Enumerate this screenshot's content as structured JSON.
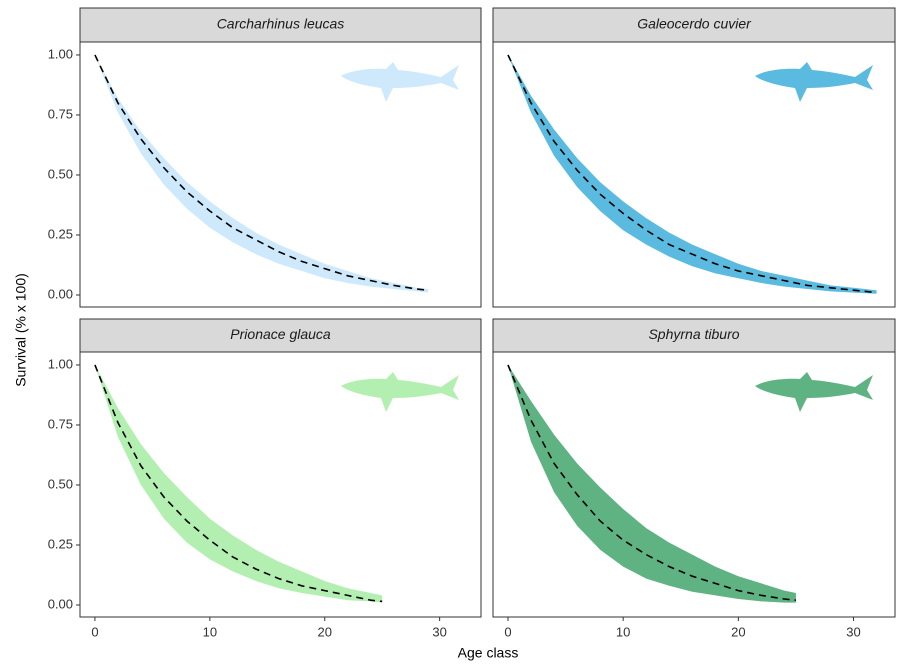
{
  "chart_data": {
    "type": "ribbon",
    "xlabel": "Age class",
    "ylabel": "Survival (% x 100)",
    "xlim": [
      -1.3,
      33.6
    ],
    "ylim": [
      -0.05,
      1.054
    ],
    "xticks": [
      0,
      10,
      20,
      30
    ],
    "yticks": [
      {
        "value": 0,
        "label": "0.00"
      },
      {
        "value": 0.25,
        "label": "0.25"
      },
      {
        "value": 0.5,
        "label": "0.50"
      },
      {
        "value": 0.75,
        "label": "0.75"
      },
      {
        "value": 1,
        "label": "1.00"
      }
    ],
    "facets": [
      {
        "title": "Carcharhinus leucas",
        "color": "#cde9fb",
        "x": [
          0,
          2,
          4,
          6,
          8,
          10,
          12,
          14,
          16,
          18,
          20,
          22,
          24,
          26,
          28,
          29
        ],
        "values": [
          1,
          0.8,
          0.65,
          0.53,
          0.43,
          0.35,
          0.28,
          0.23,
          0.18,
          0.14,
          0.11,
          0.08,
          0.06,
          0.04,
          0.025,
          0.02
        ],
        "lower": [
          1,
          0.76,
          0.59,
          0.46,
          0.36,
          0.28,
          0.22,
          0.17,
          0.13,
          0.1,
          0.07,
          0.05,
          0.035,
          0.025,
          0.015,
          0.01
        ],
        "upper": [
          1,
          0.82,
          0.68,
          0.57,
          0.47,
          0.39,
          0.32,
          0.26,
          0.21,
          0.17,
          0.13,
          0.1,
          0.07,
          0.05,
          0.03,
          0.025
        ]
      },
      {
        "title": "Galeocerdo cuvier",
        "color": "#5bbadf",
        "x": [
          0,
          2,
          4,
          6,
          8,
          10,
          12,
          14,
          16,
          18,
          20,
          22,
          24,
          26,
          28,
          30,
          32
        ],
        "values": [
          1,
          0.8,
          0.64,
          0.52,
          0.42,
          0.34,
          0.27,
          0.21,
          0.17,
          0.13,
          0.1,
          0.08,
          0.06,
          0.04,
          0.03,
          0.02,
          0.01
        ],
        "lower": [
          1,
          0.76,
          0.58,
          0.45,
          0.35,
          0.27,
          0.21,
          0.16,
          0.12,
          0.09,
          0.07,
          0.05,
          0.035,
          0.025,
          0.015,
          0.01,
          0.005
        ],
        "upper": [
          1,
          0.83,
          0.69,
          0.57,
          0.47,
          0.39,
          0.32,
          0.26,
          0.21,
          0.17,
          0.13,
          0.1,
          0.08,
          0.06,
          0.04,
          0.03,
          0.02
        ]
      },
      {
        "title": "Prionace glauca",
        "color": "#b3efb0",
        "x": [
          0,
          2,
          4,
          6,
          8,
          10,
          12,
          14,
          16,
          18,
          20,
          22,
          24,
          25
        ],
        "values": [
          1,
          0.76,
          0.58,
          0.45,
          0.35,
          0.27,
          0.2,
          0.15,
          0.11,
          0.08,
          0.06,
          0.04,
          0.02,
          0.015
        ],
        "lower": [
          1,
          0.7,
          0.5,
          0.36,
          0.26,
          0.19,
          0.14,
          0.1,
          0.07,
          0.05,
          0.035,
          0.02,
          0.015,
          0.01
        ],
        "upper": [
          1,
          0.82,
          0.67,
          0.55,
          0.45,
          0.36,
          0.29,
          0.23,
          0.18,
          0.14,
          0.1,
          0.07,
          0.05,
          0.04
        ]
      },
      {
        "title": "Sphyrna tiburo",
        "color": "#5fb383",
        "x": [
          0,
          2,
          4,
          6,
          8,
          10,
          12,
          14,
          16,
          18,
          20,
          22,
          24,
          25
        ],
        "values": [
          1,
          0.77,
          0.59,
          0.46,
          0.35,
          0.27,
          0.21,
          0.16,
          0.12,
          0.09,
          0.06,
          0.04,
          0.025,
          0.02
        ],
        "lower": [
          1,
          0.68,
          0.47,
          0.33,
          0.23,
          0.16,
          0.11,
          0.08,
          0.055,
          0.04,
          0.025,
          0.015,
          0.01,
          0.01
        ],
        "upper": [
          1,
          0.85,
          0.71,
          0.59,
          0.49,
          0.4,
          0.32,
          0.26,
          0.21,
          0.16,
          0.12,
          0.09,
          0.06,
          0.05
        ]
      }
    ]
  }
}
